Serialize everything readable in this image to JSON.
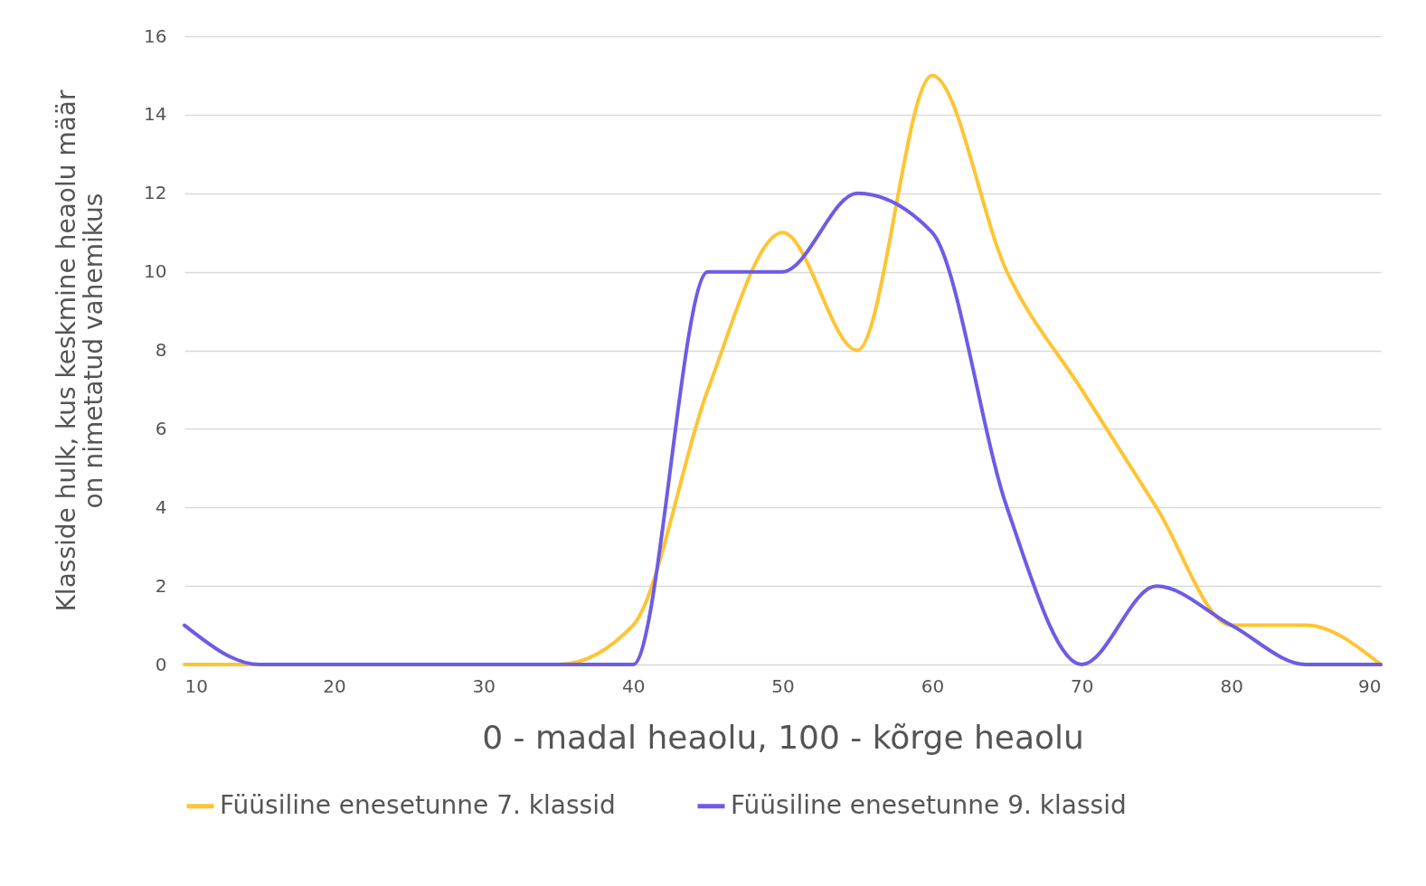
{
  "chart_data": {
    "type": "line",
    "xlabel": "0 - madal heaolu, 100 - kõrge heaolu",
    "ylabel": "Klasside hulk, kus keskmine heaolu määr\non nimetatud vahemikus",
    "x": [
      10,
      15,
      20,
      25,
      30,
      35,
      40,
      45,
      50,
      55,
      60,
      65,
      70,
      75,
      80,
      85,
      90
    ],
    "series": [
      {
        "name": "Füüsiline enesetunne 7. klassid",
        "color": "#ffc433",
        "values": [
          0,
          0,
          0,
          0,
          0,
          0,
          1,
          7,
          11,
          8,
          15,
          10,
          7,
          4,
          1,
          1,
          0
        ]
      },
      {
        "name": "Füüsiline enesetunne 9. klassid",
        "color": "#6c5ce7",
        "values": [
          1,
          0,
          0,
          0,
          0,
          0,
          0,
          10,
          10,
          12,
          11,
          4,
          0,
          2,
          1,
          0,
          0
        ]
      }
    ],
    "xlim": [
      10,
      90
    ],
    "xticks": [
      10,
      20,
      30,
      40,
      50,
      60,
      70,
      80,
      90
    ],
    "ylim": [
      0,
      16
    ],
    "yticks": [
      0,
      2,
      4,
      6,
      8,
      10,
      12,
      14,
      16
    ],
    "grid": "y",
    "legend": "bottom",
    "marker": "none",
    "line_style": "solid"
  }
}
